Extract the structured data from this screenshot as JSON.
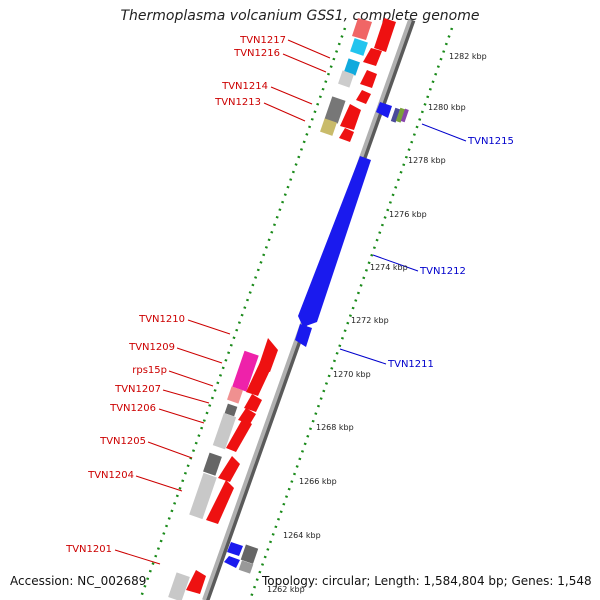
{
  "title": "Thermoplasma volcanium GSS1, complete genome",
  "accession": "Accession: NC_002689",
  "topology": "Topology: circular; Length: 1,584,804 bp; Genes: 1,548",
  "colors": {
    "forward_label": "#cc0000",
    "reverse_label": "#0000cc",
    "forward_gene": "#ee1111",
    "reverse_gene": "#1a1aee",
    "backbone": "#8a8a8a",
    "ruler_dots": "#1a8a1a"
  },
  "kbp_labels": [
    "1282 kbp",
    "1280 kbp",
    "1278 kbp",
    "1276 kbp",
    "1274 kbp",
    "1272 kbp",
    "1270 kbp",
    "1268 kbp",
    "1266 kbp",
    "1264 kbp",
    "1262 kbp"
  ],
  "forward_gene_labels": [
    "TVN1217",
    "TVN1216",
    "TVN1214",
    "TVN1213",
    "TVN1210",
    "TVN1209",
    "rps15p",
    "TVN1207",
    "TVN1206",
    "TVN1205",
    "TVN1204",
    "TVN1201"
  ],
  "reverse_gene_labels": [
    "TVN1215",
    "TVN1212",
    "TVN1211"
  ]
}
